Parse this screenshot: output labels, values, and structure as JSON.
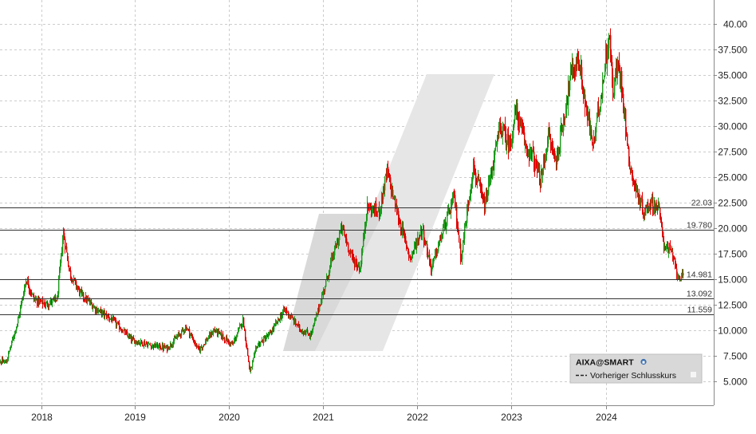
{
  "chart_data": {
    "type": "candlestick",
    "symbol": "AIXA@SMART",
    "legend": {
      "title": "AIXA@SMART",
      "items": [
        {
          "label": "Vorheriger Schlusskurs",
          "style": "dashed",
          "color": "#222222"
        }
      ],
      "placement": "bottom-right"
    },
    "x_axis": {
      "ticks": [
        "2018",
        "2019",
        "2020",
        "2021",
        "2022",
        "2023",
        "2024"
      ],
      "range": [
        "2017-07",
        "2024-12"
      ]
    },
    "y_axis": {
      "position": "right",
      "ticks": [
        "5.000",
        "7.500",
        "10.000",
        "12.500",
        "15.000",
        "17.500",
        "20.000",
        "22.500",
        "25.000",
        "27.500",
        "30.000",
        "32.500",
        "35.000",
        "37.500",
        "40.00"
      ],
      "range": [
        2.5,
        41.5
      ]
    },
    "grid": true,
    "reference_lines": [
      {
        "value": 22.03,
        "label": "22.03"
      },
      {
        "value": 19.78,
        "label": "19.780"
      },
      {
        "value": 14.981,
        "label": "14.981"
      },
      {
        "value": 13.092,
        "label": "13.092"
      },
      {
        "value": 11.559,
        "label": "11.559"
      }
    ],
    "colors": {
      "up": "#1a9a1a",
      "down": "#e00000",
      "grid": "#cccccc",
      "reference": "#333333"
    },
    "anchors": [
      [
        "2017-07-01",
        7.0
      ],
      [
        "2017-08-15",
        6.8
      ],
      [
        "2017-10-01",
        11.0
      ],
      [
        "2017-11-01",
        15.0
      ],
      [
        "2017-12-01",
        13.0
      ],
      [
        "2018-01-15",
        12.5
      ],
      [
        "2018-03-01",
        13.0
      ],
      [
        "2018-03-25",
        19.5
      ],
      [
        "2018-04-20",
        15.5
      ],
      [
        "2018-06-01",
        13.5
      ],
      [
        "2018-08-01",
        12.0
      ],
      [
        "2018-10-01",
        11.0
      ],
      [
        "2018-12-15",
        9.0
      ],
      [
        "2019-03-01",
        8.5
      ],
      [
        "2019-05-01",
        8.2
      ],
      [
        "2019-07-15",
        10.3
      ],
      [
        "2019-09-01",
        8.0
      ],
      [
        "2019-11-01",
        10.0
      ],
      [
        "2020-01-10",
        8.5
      ],
      [
        "2020-02-20",
        11.0
      ],
      [
        "2020-03-18",
        5.8
      ],
      [
        "2020-04-15",
        8.5
      ],
      [
        "2020-06-01",
        9.5
      ],
      [
        "2020-08-01",
        12.0
      ],
      [
        "2020-10-01",
        10.0
      ],
      [
        "2020-11-10",
        9.5
      ],
      [
        "2020-12-20",
        13.0
      ],
      [
        "2021-02-01",
        17.0
      ],
      [
        "2021-03-10",
        20.0
      ],
      [
        "2021-04-20",
        17.0
      ],
      [
        "2021-05-20",
        16.0
      ],
      [
        "2021-06-15",
        22.0
      ],
      [
        "2021-08-01",
        21.5
      ],
      [
        "2021-09-01",
        25.5
      ],
      [
        "2021-10-15",
        21.0
      ],
      [
        "2021-12-01",
        17.0
      ],
      [
        "2022-01-15",
        20.0
      ],
      [
        "2022-02-20",
        16.0
      ],
      [
        "2022-04-10",
        20.0
      ],
      [
        "2022-05-20",
        23.0
      ],
      [
        "2022-06-15",
        17.0
      ],
      [
        "2022-08-01",
        26.0
      ],
      [
        "2022-09-15",
        22.0
      ],
      [
        "2022-11-15",
        30.0
      ],
      [
        "2022-12-20",
        28.0
      ],
      [
        "2023-01-15",
        31.5
      ],
      [
        "2023-02-20",
        28.0
      ],
      [
        "2023-03-20",
        27.0
      ],
      [
        "2023-04-20",
        24.5
      ],
      [
        "2023-05-20",
        29.0
      ],
      [
        "2023-06-20",
        26.5
      ],
      [
        "2023-07-20",
        31.0
      ],
      [
        "2023-08-15",
        35.0
      ],
      [
        "2023-09-15",
        36.5
      ],
      [
        "2023-10-10",
        32.0
      ],
      [
        "2023-11-10",
        28.0
      ],
      [
        "2023-12-15",
        34.0
      ],
      [
        "2024-01-10",
        39.0
      ],
      [
        "2024-01-25",
        33.5
      ],
      [
        "2024-02-15",
        36.0
      ],
      [
        "2024-03-05",
        33.0
      ],
      [
        "2024-03-25",
        27.0
      ],
      [
        "2024-04-20",
        24.0
      ],
      [
        "2024-05-25",
        21.5
      ],
      [
        "2024-06-20",
        22.5
      ],
      [
        "2024-07-20",
        22.0
      ],
      [
        "2024-08-10",
        18.5
      ],
      [
        "2024-09-10",
        17.5
      ],
      [
        "2024-10-01",
        15.5
      ],
      [
        "2024-10-25",
        15.0
      ]
    ]
  }
}
